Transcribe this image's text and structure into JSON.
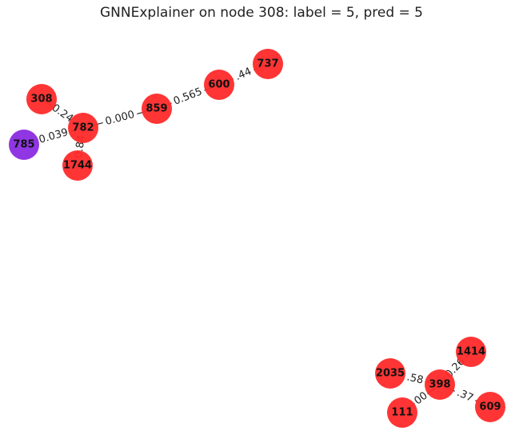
{
  "title": "GNNExplainer on node 308: label = 5, pred = 5",
  "colors": {
    "node_default": "#ff2a2a",
    "node_highlight": "#8a2be2"
  },
  "nodes": [
    {
      "id": "308"
    },
    {
      "id": "785"
    },
    {
      "id": "782"
    },
    {
      "id": "1744"
    },
    {
      "id": "859"
    },
    {
      "id": "600"
    },
    {
      "id": "737"
    },
    {
      "id": "2035"
    },
    {
      "id": "398"
    },
    {
      "id": "1414"
    },
    {
      "id": "111"
    },
    {
      "id": "609"
    }
  ],
  "highlight_node": "785",
  "edges": [
    {
      "source": "308",
      "target": "782",
      "label": "0.24"
    },
    {
      "source": "785",
      "target": "782",
      "label": "0.039"
    },
    {
      "source": "782",
      "target": "1744",
      "label": "0.84"
    },
    {
      "source": "782",
      "target": "859",
      "label": "0.000"
    },
    {
      "source": "859",
      "target": "600",
      "label": "0.565"
    },
    {
      "source": "600",
      "target": "737",
      "label": ".44"
    },
    {
      "source": "2035",
      "target": "398",
      "label": ".58"
    },
    {
      "source": "398",
      "target": "1414",
      "label": "0.26"
    },
    {
      "source": "398",
      "target": "111",
      "label": "00"
    },
    {
      "source": "398",
      "target": "609",
      "label": ".37"
    }
  ]
}
